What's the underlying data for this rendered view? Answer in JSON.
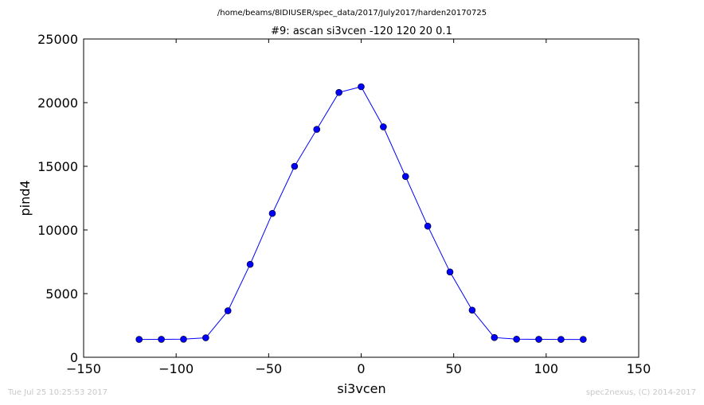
{
  "chart_data": {
    "type": "line",
    "supertitle": "/home/beams/8IDIUSER/spec_data/2017/July2017/harden20170725",
    "title": "#9: ascan  si3vcen -120 120  20 0.1",
    "xlabel": "si3vcen",
    "ylabel": "pind4",
    "xlim": [
      -150,
      150
    ],
    "ylim": [
      0,
      25000
    ],
    "xticks": [
      -150,
      -100,
      -50,
      0,
      50,
      100,
      150
    ],
    "yticks": [
      0,
      5000,
      10000,
      15000,
      20000,
      25000
    ],
    "xtick_labels": [
      "−150",
      "−100",
      "−50",
      "0",
      "50",
      "100",
      "150"
    ],
    "ytick_labels": [
      "0",
      "5000",
      "10000",
      "15000",
      "20000",
      "25000"
    ],
    "grid": false,
    "line_color": "#0000ff",
    "marker": "circle",
    "series": [
      {
        "x": [
          -120,
          -108,
          -96,
          -84,
          -72,
          -60,
          -48,
          -36,
          -24,
          -12,
          0,
          12,
          24,
          36,
          48,
          60,
          72,
          84,
          96,
          108,
          120
        ],
        "y": [
          1400,
          1410,
          1420,
          1530,
          3650,
          7300,
          11300,
          15000,
          17900,
          20800,
          21250,
          18100,
          14200,
          10300,
          6700,
          3700,
          1550,
          1420,
          1410,
          1400,
          1400
        ]
      }
    ]
  },
  "footer": {
    "timestamp": "Tue Jul 25 10:25:53 2017",
    "credit": "spec2nexus, (C) 2014-2017"
  }
}
